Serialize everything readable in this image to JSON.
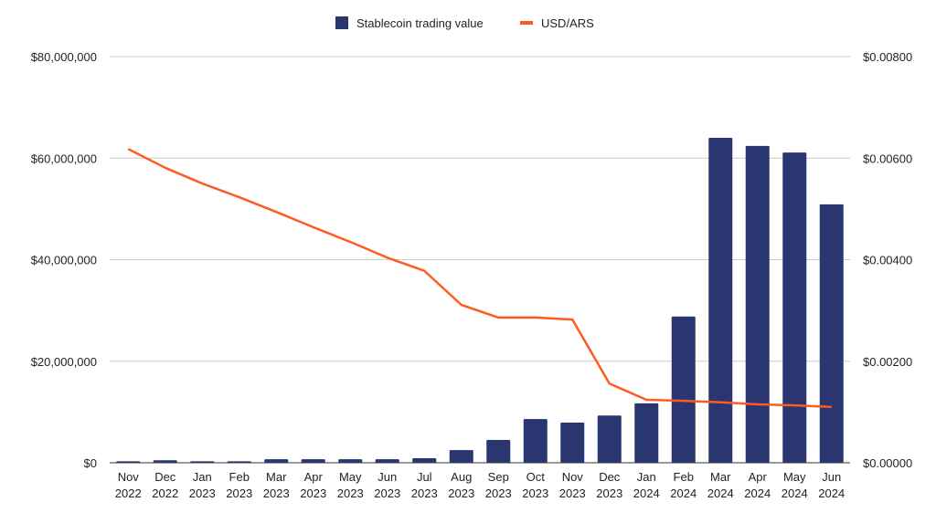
{
  "chart_data": {
    "type": "bar+line",
    "title": "",
    "categories": [
      "Nov 2022",
      "Dec 2022",
      "Jan 2023",
      "Feb 2023",
      "Mar 2023",
      "Apr 2023",
      "May 2023",
      "Jun 2023",
      "Jul 2023",
      "Aug 2023",
      "Sep 2023",
      "Oct 2023",
      "Nov 2023",
      "Dec 2023",
      "Jan 2024",
      "Feb 2024",
      "Mar 2024",
      "Apr 2024",
      "May 2024",
      "Jun 2024"
    ],
    "series": [
      {
        "name": "Stablecoin trading value",
        "type": "bar",
        "axis": "left",
        "color": "#29366f",
        "values": [
          300000,
          500000,
          300000,
          300000,
          700000,
          700000,
          700000,
          700000,
          900000,
          2500000,
          4500000,
          8600000,
          7900000,
          9300000,
          11700000,
          28800000,
          64000000,
          62400000,
          61100000,
          50900000
        ]
      },
      {
        "name": "USD/ARS",
        "type": "line",
        "axis": "right",
        "color": "#ff5a1f",
        "values": [
          0.00618,
          0.00581,
          0.0055,
          0.00523,
          0.00494,
          0.00464,
          0.00435,
          0.00404,
          0.00378,
          0.00311,
          0.00286,
          0.00286,
          0.00282,
          0.00156,
          0.00124,
          0.00122,
          0.00119,
          0.00115,
          0.00113,
          0.0011
        ]
      }
    ],
    "left_axis": {
      "range": [
        0,
        80000000
      ],
      "ticks": [
        "$0",
        "$20,000,000",
        "$40,000,000",
        "$60,000,000",
        "$80,000,000"
      ]
    },
    "right_axis": {
      "range": [
        0,
        0.008
      ],
      "ticks": [
        "$0.00000",
        "$0.00200",
        "$0.00400",
        "$0.00600",
        "$0.00800"
      ]
    },
    "grid": true,
    "legend": "top-center"
  }
}
